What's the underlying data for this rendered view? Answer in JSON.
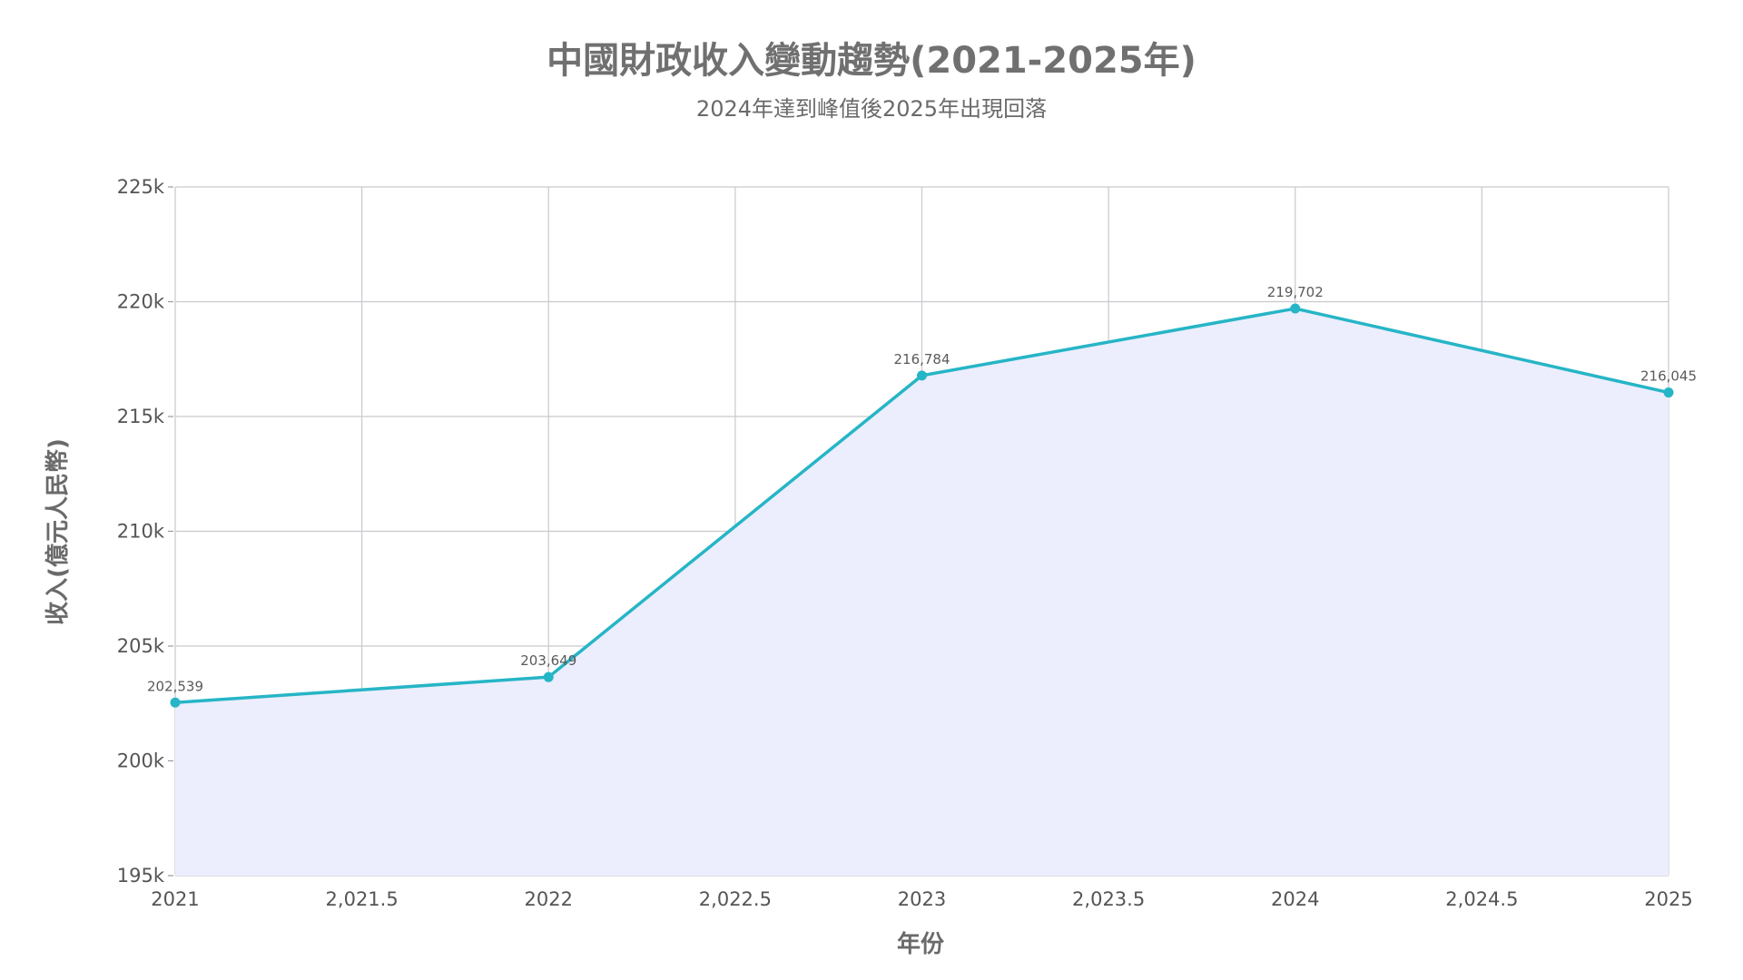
{
  "chart_data": {
    "type": "area",
    "title": "中國財政收入變動趨勢(2021-2025年)",
    "subtitle": "2024年達到峰值後2025年出現回落",
    "xlabel": "年份",
    "ylabel": "收入(億元人民幣)",
    "x": [
      2021,
      2022,
      2023,
      2024,
      2025
    ],
    "series": [
      {
        "values": [
          202539,
          203649,
          216784,
          219702,
          216045
        ]
      }
    ],
    "data_labels": [
      "202,539",
      "203,649",
      "216,784",
      "219,702",
      "216,045"
    ],
    "xlim": [
      2021,
      2025
    ],
    "ylim": [
      195000,
      225000
    ],
    "x_ticks": [
      2021,
      2021.5,
      2022,
      2022.5,
      2023,
      2023.5,
      2024,
      2024.5,
      2025
    ],
    "x_tick_labels": [
      "2021",
      "2,021.5",
      "2022",
      "2,022.5",
      "2023",
      "2,023.5",
      "2024",
      "2,024.5",
      "2025"
    ],
    "y_ticks": [
      195000,
      200000,
      205000,
      210000,
      215000,
      220000,
      225000
    ],
    "y_tick_labels": [
      "195k",
      "200k",
      "205k",
      "210k",
      "215k",
      "220k",
      "225k"
    ],
    "grid": true,
    "legend": "none",
    "colors": {
      "line": "#26b5c6",
      "fill": "#eceefd",
      "grid": "#c9c9cf"
    }
  }
}
